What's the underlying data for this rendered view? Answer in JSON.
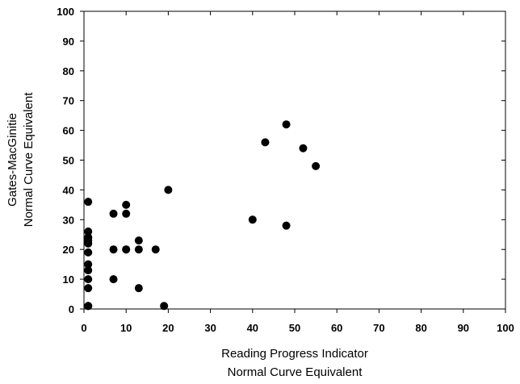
{
  "chart_data": {
    "type": "scatter",
    "xlabel": [
      "Reading Progress Indicator",
      "Normal Curve Equivalent"
    ],
    "ylabel": [
      "Gates-MacGinitie",
      "Normal Curve Equivalent"
    ],
    "xlim": [
      0,
      100
    ],
    "ylim": [
      0,
      100
    ],
    "x_ticks": [
      "0",
      "10",
      "20",
      "30",
      "40",
      "50",
      "60",
      "70",
      "80",
      "90",
      "100"
    ],
    "y_ticks": [
      "0",
      "10",
      "20",
      "30",
      "40",
      "50",
      "60",
      "70",
      "80",
      "90",
      "100"
    ],
    "grid": false,
    "marker_color": "#000000",
    "series": [
      {
        "x": [
          1,
          1,
          1,
          1,
          1,
          1,
          1,
          1,
          1,
          1,
          1,
          1,
          1,
          7,
          7,
          7,
          10,
          10,
          10,
          10,
          13,
          13,
          13,
          17,
          19,
          20,
          40,
          43,
          48,
          48,
          52,
          55
        ],
        "y": [
          1,
          7,
          10,
          13,
          15,
          19,
          22,
          23,
          24,
          26,
          36,
          1,
          24,
          10,
          20,
          32,
          20,
          20,
          32,
          35,
          7,
          20,
          23,
          20,
          1,
          40,
          30,
          56,
          62,
          28,
          54,
          48
        ]
      }
    ]
  }
}
